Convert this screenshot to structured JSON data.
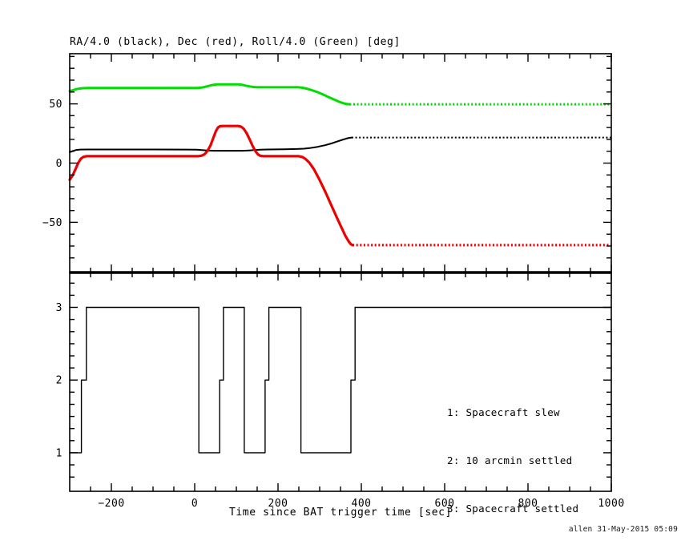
{
  "figure": {
    "title": "RA/4.0 (black), Dec (red), Roll/4.0 (Green) [deg]",
    "xlabel": "Time since BAT trigger time [sec]",
    "watermark": "allen 31-May-2015 05:09",
    "background": "#ffffff"
  },
  "chart_data": {
    "type": "line",
    "title": "RA/4.0 (black), Dec (red), Roll/4.0 (Green) [deg]",
    "xlabel": "Time since BAT trigger time [sec]",
    "grid": false,
    "x_axis": {
      "range": [
        -300,
        1000
      ],
      "major_ticks": [
        {
          "value": -200,
          "label": "−200"
        },
        {
          "value": 0,
          "label": "0"
        },
        {
          "value": 200,
          "label": "200"
        },
        {
          "value": 400,
          "label": "400"
        },
        {
          "value": 600,
          "label": "600"
        },
        {
          "value": 800,
          "label": "800"
        },
        {
          "value": 1000,
          "label": "1000"
        }
      ],
      "minor_step": 50
    },
    "panels": [
      {
        "name": "attitude",
        "ylim": [
          -92.3,
          92.3
        ],
        "major_ticks": [
          {
            "value": 50,
            "label": "50"
          },
          {
            "value": 0,
            "label": "0"
          },
          {
            "value": -50,
            "label": "−50"
          }
        ],
        "minor_step": 10,
        "series": [
          {
            "name": "Roll/4.0",
            "color": "#00dd00",
            "width": 3,
            "solid": [
              [
                -300,
                60.7
              ],
              [
                -293,
                61.4
              ],
              [
                -286,
                62.2
              ],
              [
                -278,
                62.8
              ],
              [
                -268,
                63.2
              ],
              [
                -255,
                63.4
              ],
              [
                -100,
                63.4
              ],
              [
                10,
                63.5
              ],
              [
                20,
                63.9
              ],
              [
                30,
                64.8
              ],
              [
                40,
                65.7
              ],
              [
                48,
                66.2
              ],
              [
                55,
                66.4
              ],
              [
                105,
                66.4
              ],
              [
                113,
                66.1
              ],
              [
                122,
                65.4
              ],
              [
                132,
                64.7
              ],
              [
                142,
                64.2
              ],
              [
                152,
                64.0
              ],
              [
                165,
                64.0
              ],
              [
                248,
                64.0
              ],
              [
                258,
                63.6
              ],
              [
                268,
                62.9
              ],
              [
                280,
                61.7
              ],
              [
                294,
                60.0
              ],
              [
                308,
                57.9
              ],
              [
                322,
                55.6
              ],
              [
                336,
                53.4
              ],
              [
                348,
                51.6
              ],
              [
                358,
                50.4
              ],
              [
                366,
                49.8
              ],
              [
                372,
                49.6
              ]
            ],
            "dotted": [
              [
                372,
                49.6
              ],
              [
                1000,
                49.6
              ]
            ]
          },
          {
            "name": "RA/4.0",
            "color": "#000000",
            "width": 2,
            "solid": [
              [
                -300,
                9.2
              ],
              [
                -292,
                10.3
              ],
              [
                -284,
                11.1
              ],
              [
                -275,
                11.4
              ],
              [
                -260,
                11.5
              ],
              [
                -100,
                11.5
              ],
              [
                -20,
                11.4
              ],
              [
                5,
                11.3
              ],
              [
                18,
                11.0
              ],
              [
                30,
                10.6
              ],
              [
                45,
                10.4
              ],
              [
                115,
                10.4
              ],
              [
                130,
                10.7
              ],
              [
                145,
                11.1
              ],
              [
                158,
                11.3
              ],
              [
                175,
                11.5
              ],
              [
                215,
                11.7
              ],
              [
                245,
                11.9
              ],
              [
                262,
                12.2
              ],
              [
                278,
                12.8
              ],
              [
                295,
                13.7
              ],
              [
                312,
                15.0
              ],
              [
                328,
                16.6
              ],
              [
                342,
                18.2
              ],
              [
                354,
                19.6
              ],
              [
                364,
                20.7
              ],
              [
                371,
                21.3
              ],
              [
                377,
                21.6
              ]
            ],
            "dotted": [
              [
                377,
                21.6
              ],
              [
                1000,
                21.6
              ]
            ]
          },
          {
            "name": "Dec",
            "color": "#ee0000",
            "width": 3.2,
            "solid": [
              [
                -300,
                -14
              ],
              [
                -293,
                -10.5
              ],
              [
                -286,
                -5
              ],
              [
                -279,
                0.5
              ],
              [
                -273,
                3.8
              ],
              [
                -267,
                5.3
              ],
              [
                -260,
                5.8
              ],
              [
                -100,
                5.8
              ],
              [
                8,
                5.8
              ],
              [
                17,
                6.3
              ],
              [
                24,
                7.6
              ],
              [
                31,
                10.5
              ],
              [
                38,
                15
              ],
              [
                45,
                21.5
              ],
              [
                51,
                27
              ],
              [
                56,
                30
              ],
              [
                61,
                31.2
              ],
              [
                70,
                31.3
              ],
              [
                105,
                31.3
              ],
              [
                112,
                30.6
              ],
              [
                118,
                28.8
              ],
              [
                125,
                25
              ],
              [
                132,
                20
              ],
              [
                139,
                14.5
              ],
              [
                146,
                10
              ],
              [
                152,
                7.3
              ],
              [
                158,
                6.1
              ],
              [
                165,
                5.8
              ],
              [
                250,
                5.8
              ],
              [
                258,
                5.2
              ],
              [
                266,
                3.5
              ],
              [
                275,
                0.5
              ],
              [
                286,
                -5
              ],
              [
                298,
                -13
              ],
              [
                312,
                -23
              ],
              [
                326,
                -34
              ],
              [
                340,
                -45
              ],
              [
                352,
                -54
              ],
              [
                362,
                -61.5
              ],
              [
                370,
                -66.3
              ],
              [
                375,
                -68.5
              ],
              [
                379,
                -69.2
              ]
            ],
            "dotted": [
              [
                379,
                -69.2
              ],
              [
                1000,
                -69.2
              ]
            ]
          }
        ]
      },
      {
        "name": "settling-state",
        "ylim": [
          0.47,
          3.48
        ],
        "major_ticks": [
          {
            "value": 3,
            "label": "3"
          },
          {
            "value": 2,
            "label": "2"
          },
          {
            "value": 1,
            "label": "1"
          }
        ],
        "minor_step": 0.16667,
        "series": [
          {
            "name": "state-step",
            "color": "#000000",
            "width": 1.4,
            "solid": [
              [
                -300,
                1
              ],
              [
                -272,
                1
              ],
              [
                -272,
                2
              ],
              [
                -260,
                2
              ],
              [
                -260,
                3
              ],
              [
                10,
                3
              ],
              [
                10,
                1
              ],
              [
                60,
                1
              ],
              [
                60,
                2
              ],
              [
                69,
                2
              ],
              [
                69,
                3
              ],
              [
                119,
                3
              ],
              [
                119,
                1
              ],
              [
                169,
                1
              ],
              [
                169,
                2
              ],
              [
                178,
                2
              ],
              [
                178,
                3
              ],
              [
                255,
                3
              ],
              [
                255,
                1
              ],
              [
                375,
                1
              ],
              [
                375,
                2
              ],
              [
                385,
                2
              ],
              [
                385,
                3
              ],
              [
                1000,
                3
              ]
            ],
            "dotted": []
          }
        ],
        "legend": [
          "1: Spacecraft slew",
          "2: 10 arcmin settled",
          "3: Spacecraft settled"
        ]
      }
    ]
  }
}
